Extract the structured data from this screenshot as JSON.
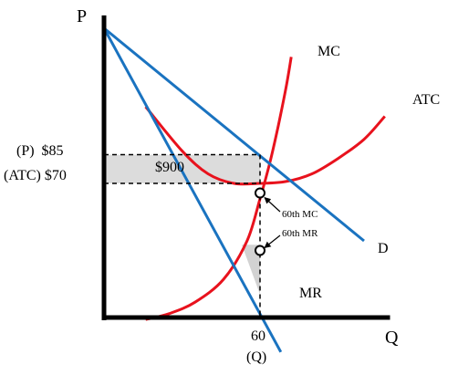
{
  "chart_data": {
    "type": "line",
    "x_axis_label": "Q",
    "y_axis_label": "P",
    "x_tick": {
      "value": 60,
      "label": "60",
      "sublabel": "(Q)"
    },
    "price_label": "(P)  $85",
    "atc_label": "(ATC) $70",
    "price": 85,
    "atc_at_q": 70,
    "quantity": 60,
    "profit_label": "$900",
    "mr_mc_point_label": "60th MC",
    "mr_point_label": "60th MR",
    "curves": {
      "demand": {
        "label": "D",
        "color": "#1a73c0",
        "points": [
          [
            0,
            151
          ],
          [
            100,
            40
          ]
        ]
      },
      "mr": {
        "label": "MR",
        "color": "#1a73c0",
        "points": [
          [
            0,
            151
          ],
          [
            68,
            -18
          ]
        ]
      },
      "mc": {
        "label": "MC",
        "color": "#e8121d",
        "points": [
          [
            16,
            -1
          ],
          [
            25,
            2
          ],
          [
            35,
            8
          ],
          [
            46,
            20
          ],
          [
            55,
            40
          ],
          [
            60,
            62
          ],
          [
            64,
            82
          ],
          [
            67,
            100
          ],
          [
            70,
            120
          ],
          [
            72,
            136
          ]
        ]
      },
      "atc": {
        "label": "ATC",
        "color": "#e8121d",
        "points": [
          [
            16,
            110
          ],
          [
            30,
            87
          ],
          [
            40,
            75
          ],
          [
            50,
            70
          ],
          [
            60,
            70
          ],
          [
            70,
            71
          ],
          [
            80,
            75
          ],
          [
            90,
            83
          ],
          [
            100,
            93
          ],
          [
            108,
            105
          ]
        ]
      }
    },
    "reference_lines": {
      "style": "dashed",
      "price_y": 85,
      "atc_y": 70,
      "quantity_x": 60
    },
    "shaded_regions": [
      "profit",
      "deadweight"
    ]
  }
}
